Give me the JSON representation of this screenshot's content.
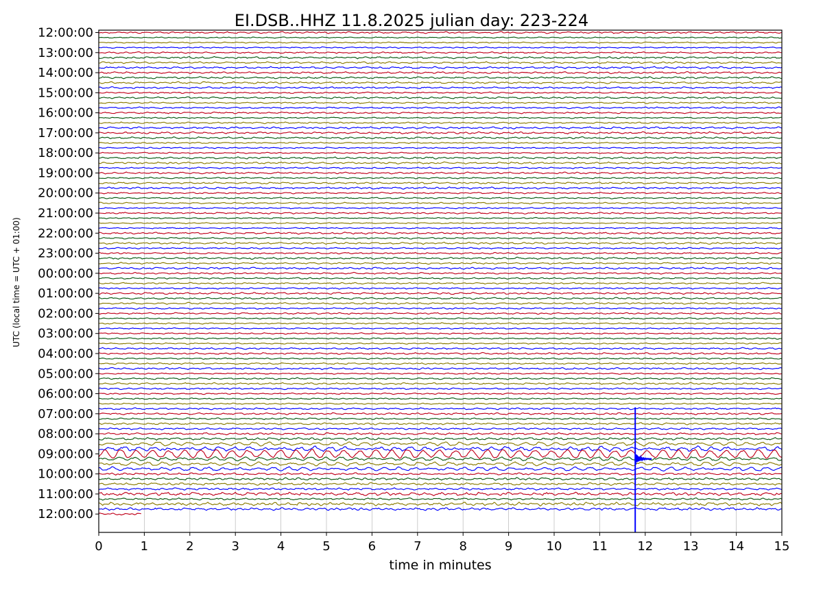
{
  "chart_data": {
    "type": "line",
    "title": "EI.DSB..HHZ   11.8.2025   julian day: 223-224",
    "xlabel": "time in minutes",
    "ylabel": "UTC (local time = UTC + 01:00)",
    "xlim": [
      0,
      15
    ],
    "x_ticks": [
      "0",
      "1",
      "2",
      "3",
      "4",
      "5",
      "6",
      "7",
      "8",
      "9",
      "10",
      "11",
      "12",
      "13",
      "14",
      "15"
    ],
    "y_tick_labels": [
      "12:00:00",
      "13:00:00",
      "14:00:00",
      "15:00:00",
      "16:00:00",
      "17:00:00",
      "18:00:00",
      "19:00:00",
      "20:00:00",
      "21:00:00",
      "22:00:00",
      "23:00:00",
      "00:00:00",
      "01:00:00",
      "02:00:00",
      "03:00:00",
      "04:00:00",
      "05:00:00",
      "06:00:00",
      "07:00:00",
      "08:00:00",
      "09:00:00",
      "10:00:00",
      "11:00:00",
      "12:00:00"
    ],
    "traces_per_hour": 4,
    "trace_minutes": 15,
    "trace_count": 97,
    "last_trace_minutes": 0.93,
    "trace_colors": [
      "#c0001a",
      "#0a5a12",
      "#8a7a00",
      "#0000ff"
    ],
    "events": [
      {
        "type": "earthquake",
        "minute": 11.78,
        "start_trace": 75,
        "end_trace": 96,
        "peak_trace": 85
      }
    ],
    "long_period_oscillation": {
      "traces": [
        82,
        83,
        84,
        85,
        86,
        87
      ],
      "strongest_trace": 84,
      "period_minutes": 0.35
    },
    "grid": true
  }
}
